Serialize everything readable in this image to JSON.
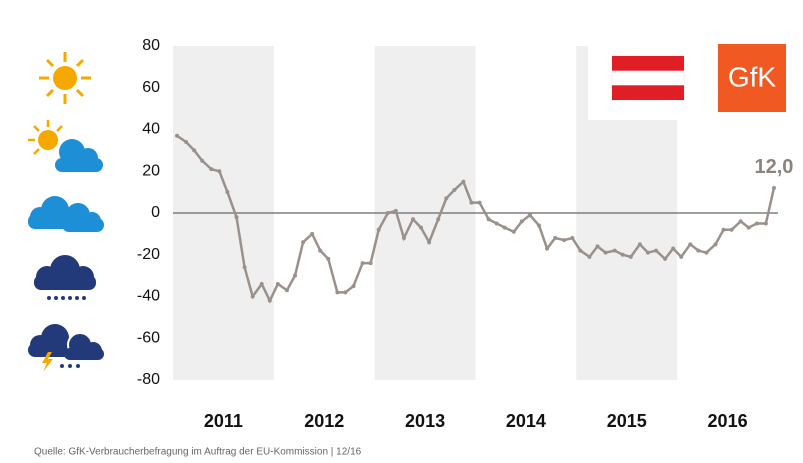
{
  "chart_data": {
    "type": "line",
    "x": [
      2011.04,
      2011.13,
      2011.21,
      2011.29,
      2011.38,
      2011.46,
      2011.54,
      2011.63,
      2011.71,
      2011.79,
      2011.88,
      2011.96,
      2012.04,
      2012.13,
      2012.21,
      2012.29,
      2012.38,
      2012.46,
      2012.54,
      2012.63,
      2012.71,
      2012.79,
      2012.88,
      2012.96,
      2013.04,
      2013.13,
      2013.21,
      2013.29,
      2013.38,
      2013.46,
      2013.54,
      2013.63,
      2013.71,
      2013.79,
      2013.88,
      2013.96,
      2014.04,
      2014.13,
      2014.21,
      2014.29,
      2014.38,
      2014.46,
      2014.54,
      2014.63,
      2014.71,
      2014.79,
      2014.88,
      2014.96,
      2015.04,
      2015.13,
      2015.21,
      2015.29,
      2015.38,
      2015.46,
      2015.54,
      2015.63,
      2015.71,
      2015.79,
      2015.88,
      2015.96,
      2016.04,
      2016.13,
      2016.21,
      2016.29,
      2016.38,
      2016.46,
      2016.54,
      2016.63,
      2016.71,
      2016.79,
      2016.88,
      2016.96
    ],
    "series": [
      {
        "color": "#9b918c",
        "values": [
          37,
          34,
          30,
          25,
          21,
          20,
          10,
          -2,
          -26,
          -40,
          -34,
          -42,
          -34,
          -37,
          -30,
          -14,
          -10,
          -18,
          -22,
          -38,
          -38,
          -35,
          -24,
          -24,
          -8,
          0,
          1,
          -12,
          -3,
          -7,
          -14,
          -3,
          7,
          11,
          15,
          5,
          5,
          -3,
          -5,
          -7,
          -9,
          -4,
          -1,
          -6,
          -17,
          -12,
          -13,
          -12,
          -18,
          -21,
          -16,
          -19,
          -18,
          -20,
          -21,
          -15,
          -19,
          -18,
          -22,
          -17,
          -21,
          -15,
          -18,
          -19,
          -15,
          -8,
          -8,
          -4,
          -7,
          -5,
          -5,
          12
        ],
        "value_labels": [
          null,
          null,
          null,
          null,
          null,
          null,
          null,
          null,
          null,
          null,
          null,
          null,
          null,
          null,
          null,
          null,
          null,
          null,
          null,
          null,
          null,
          null,
          null,
          null,
          null,
          null,
          null,
          null,
          null,
          null,
          null,
          null,
          null,
          null,
          null,
          null,
          null,
          null,
          null,
          null,
          null,
          null,
          null,
          null,
          null,
          null,
          null,
          null,
          null,
          null,
          null,
          null,
          null,
          null,
          null,
          null,
          null,
          null,
          null,
          null,
          null,
          null,
          null,
          null,
          null,
          null,
          null,
          null,
          null,
          null,
          null,
          "12,0"
        ]
      }
    ],
    "xlim": [
      2011,
      2017
    ],
    "xticks": [
      {
        "value": 2011.5,
        "label": "2011"
      },
      {
        "value": 2012.5,
        "label": "2012"
      },
      {
        "value": 2013.5,
        "label": "2013"
      },
      {
        "value": 2014.5,
        "label": "2014"
      },
      {
        "value": 2015.5,
        "label": "2015"
      },
      {
        "value": 2016.5,
        "label": "2016"
      }
    ],
    "ylim": [
      -80,
      80
    ],
    "yticks": [
      80,
      60,
      40,
      20,
      0,
      -20,
      -40,
      -60,
      -80
    ],
    "logo": "GfK",
    "source": "Quelle: GfK-Verbraucherbefragung im Auftrag der EU-Kommission | 12/16"
  }
}
